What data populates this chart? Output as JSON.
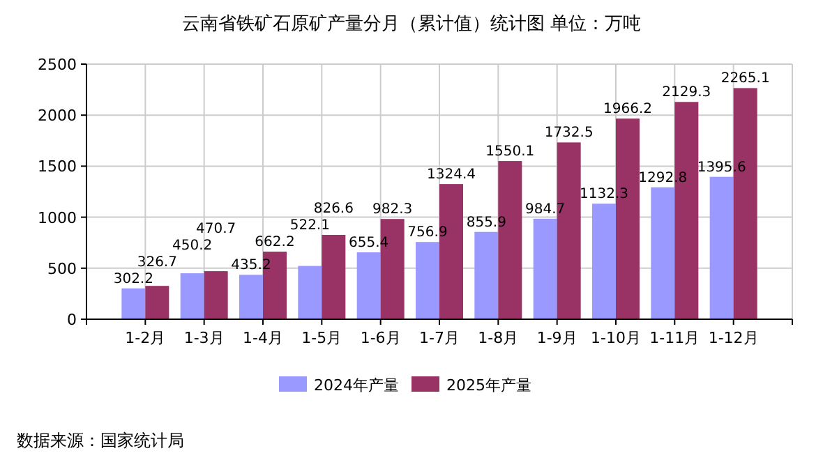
{
  "chart_data": {
    "type": "bar",
    "title": "云南省铁矿石原矿产量分月（累计值）统计图 单位：万吨",
    "categories": [
      "1-2月",
      "1-3月",
      "1-4月",
      "1-5月",
      "1-6月",
      "1-7月",
      "1-8月",
      "1-9月",
      "1-10月",
      "1-11月",
      "1-12月"
    ],
    "series": [
      {
        "name": "2024年产量",
        "color": "#9999ff",
        "values": [
          302.2,
          450.2,
          435.2,
          522.1,
          655.4,
          756.9,
          855.9,
          984.7,
          1132.3,
          1292.8,
          1395.6
        ]
      },
      {
        "name": "2025年产量",
        "color": "#993366",
        "values": [
          326.7,
          470.7,
          662.2,
          826.6,
          982.3,
          1324.4,
          1550.1,
          1732.5,
          1966.2,
          2129.3,
          2265.1
        ]
      }
    ],
    "ylim": [
      0,
      2500
    ],
    "yticks": [
      0,
      500,
      1000,
      1500,
      2000,
      2500
    ],
    "grid": true,
    "legend": "bottom",
    "data_labels": true,
    "annotations": [
      "数据来源：国家统计局"
    ]
  }
}
